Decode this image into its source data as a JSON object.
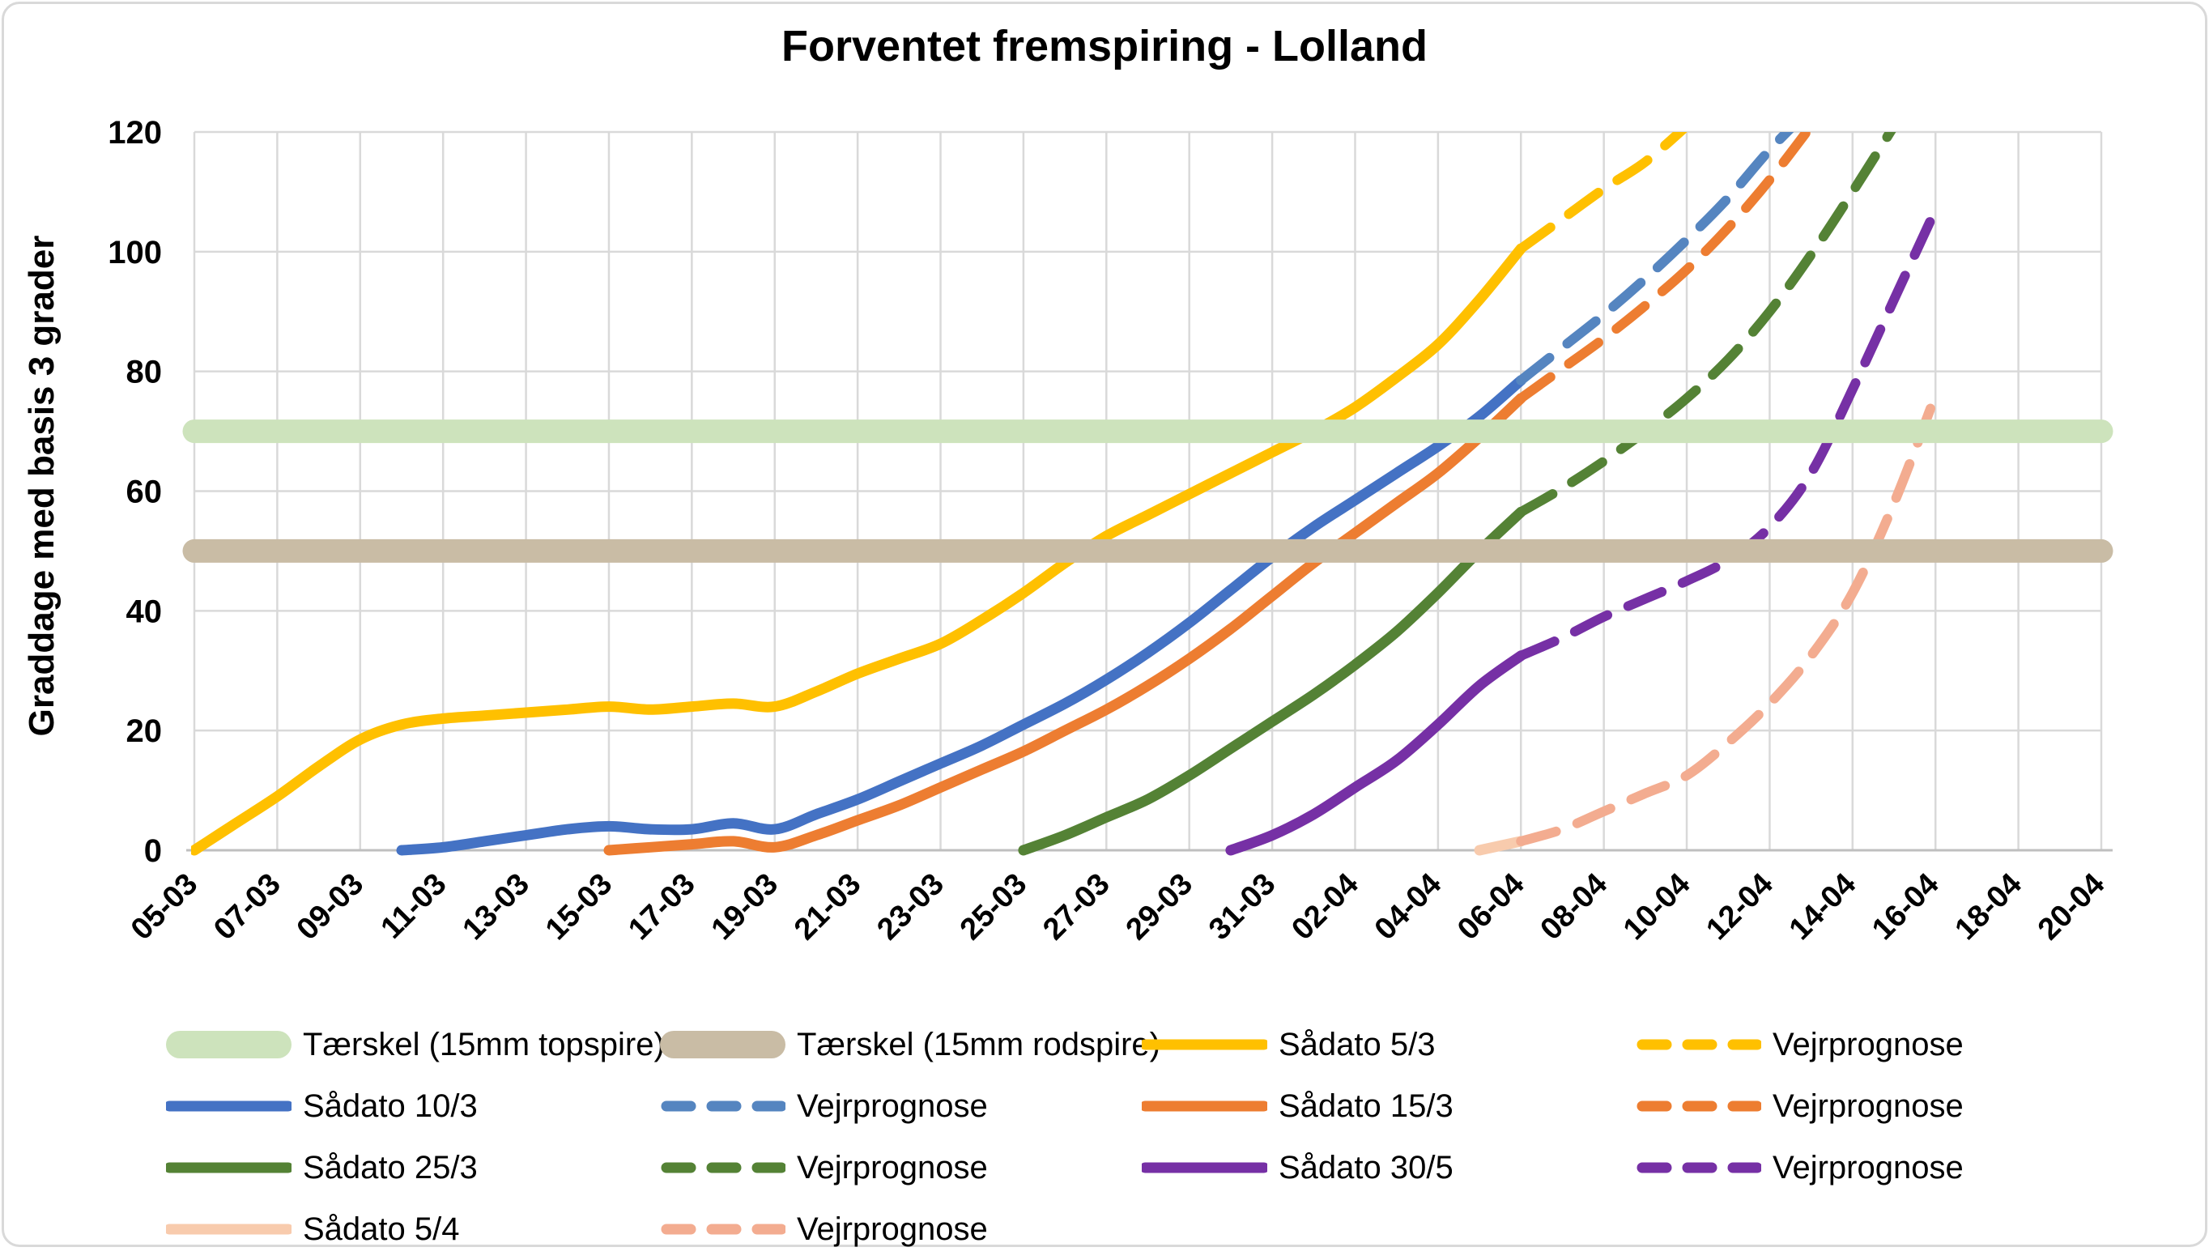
{
  "chart_data": {
    "type": "line",
    "title": "Forventet fremspiring - Lolland",
    "ylabel": "Graddage med basis 3 grader",
    "ylim": [
      0,
      120
    ],
    "y_ticks": [
      0,
      20,
      40,
      60,
      80,
      100,
      120
    ],
    "x_tick_labels": [
      "05-03",
      "07-03",
      "09-03",
      "11-03",
      "13-03",
      "15-03",
      "17-03",
      "19-03",
      "21-03",
      "23-03",
      "25-03",
      "27-03",
      "29-03",
      "31-03",
      "02-04",
      "04-04",
      "06-04",
      "08-04",
      "10-04",
      "12-04",
      "14-04",
      "16-04",
      "18-04",
      "20-04"
    ],
    "x_start_date": "05-03",
    "x_total_days": 46,
    "grid": true,
    "legend_position": "bottom",
    "grid_color": "#D9D9D9",
    "axis_color": "#BFBFBF",
    "series": [
      {
        "name": "Tærskel (15mm topspire)",
        "type": "band",
        "color": "#CDE3BC",
        "value": 70
      },
      {
        "name": "Tærskel (15mm rodspire)",
        "type": "band",
        "color": "#C9BCA5",
        "value": 50
      },
      {
        "name": "Sådato 5/3",
        "type": "solid",
        "color": "#FFC000",
        "start_day_offset": 0,
        "values": [
          0,
          4.5,
          9,
          14,
          18.5,
          21,
          22,
          22.5,
          23,
          23.5,
          24,
          23.5,
          24,
          24.5,
          24,
          26.5,
          29.5,
          32,
          34.5,
          38.5,
          43,
          48,
          52.5,
          56,
          59.5,
          63,
          66.5,
          70,
          74,
          79,
          84.5,
          92,
          100.5
        ]
      },
      {
        "name": "Vejrprognose",
        "type": "dashed",
        "color": "#FFC000",
        "start_day_offset": 32,
        "values": [
          100.5,
          105.5,
          110.5,
          115,
          121
        ]
      },
      {
        "name": "Sådato 10/3",
        "type": "solid",
        "color": "#4472C4",
        "start_day_offset": 5,
        "values": [
          0,
          0.5,
          1.5,
          2.5,
          3.5,
          4,
          3.5,
          3.5,
          4.5,
          3.5,
          6,
          8.5,
          11.5,
          14.5,
          17.5,
          21,
          24.5,
          28.5,
          33,
          38,
          43.5,
          49,
          54,
          58.5,
          63,
          67.5,
          72.5,
          78.5
        ]
      },
      {
        "name": "Vejrprognose",
        "type": "dashed",
        "color": "#5585C0",
        "start_day_offset": 32,
        "values": [
          78.5,
          84,
          89.5,
          95.5,
          102,
          109,
          117,
          124
        ]
      },
      {
        "name": "Sådato 15/3",
        "type": "solid",
        "color": "#ED7D31",
        "start_day_offset": 10,
        "values": [
          0,
          0.5,
          1,
          1.5,
          0.5,
          2.5,
          5,
          7.5,
          10.5,
          13.5,
          16.5,
          20,
          23.5,
          27.5,
          32,
          37,
          42.5,
          48,
          53,
          58,
          63,
          69,
          75.5
        ]
      },
      {
        "name": "Vejrprognose",
        "type": "dashed",
        "color": "#ED7D31",
        "start_day_offset": 32,
        "values": [
          75.5,
          80.5,
          85.5,
          91,
          97,
          104,
          112,
          121
        ]
      },
      {
        "name": "Sådato 25/3",
        "type": "solid",
        "color": "#548235",
        "start_day_offset": 20,
        "values": [
          0,
          2.5,
          5.5,
          8.5,
          12.5,
          17,
          21.5,
          26,
          31,
          36.5,
          43,
          50,
          56.5
        ]
      },
      {
        "name": "Vejrprognose",
        "type": "dashed",
        "color": "#548235",
        "start_day_offset": 32,
        "values": [
          56.5,
          60.5,
          65,
          70,
          75.5,
          82,
          90,
          99.5,
          110,
          121
        ]
      },
      {
        "name": "Sådato 30/5",
        "type": "solid",
        "color": "#7630A5",
        "start_day_offset": 25,
        "values": [
          0,
          2.5,
          6,
          10.5,
          15,
          21,
          27.5,
          32.5
        ]
      },
      {
        "name": "Vejrprognose",
        "type": "dashed",
        "color": "#7630A5",
        "start_day_offset": 32,
        "values": [
          32.5,
          35.5,
          39,
          42,
          45,
          48.5,
          54,
          63,
          77,
          92,
          107
        ]
      },
      {
        "name": "Sådato 5/4",
        "type": "solid",
        "color": "#F8CBAD",
        "start_day_offset": 31,
        "values": [
          0,
          1.5
        ]
      },
      {
        "name": "Vejrprognose",
        "type": "dashed",
        "color": "#F3AC90",
        "start_day_offset": 32,
        "values": [
          1.5,
          3.5,
          6.5,
          9.5,
          12.5,
          18,
          24.5,
          32.5,
          43,
          58,
          76
        ]
      }
    ]
  }
}
